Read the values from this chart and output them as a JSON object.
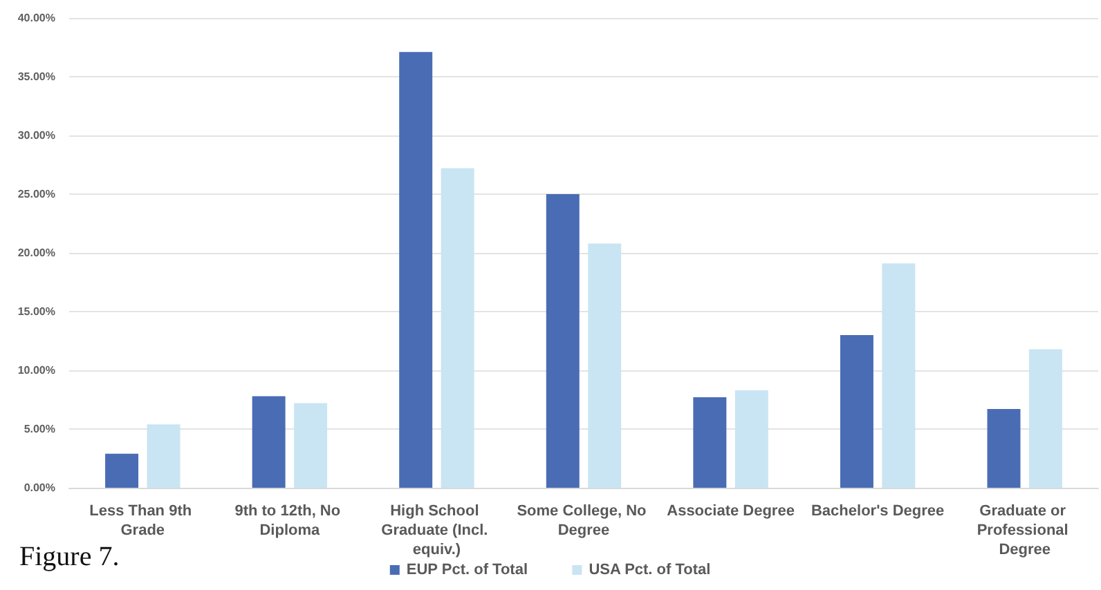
{
  "chart_data": {
    "type": "bar",
    "categories": [
      "Less Than 9th Grade",
      "9th to 12th, No Diploma",
      "High School Graduate (Incl. equiv.)",
      "Some College, No Degree",
      "Associate Degree",
      "Bachelor's Degree",
      "Graduate or Professional Degree"
    ],
    "series": [
      {
        "name": "EUP Pct. of Total",
        "color": "#4a6cb4",
        "values": [
          2.9,
          7.8,
          37.1,
          25.0,
          7.7,
          13.0,
          6.7
        ]
      },
      {
        "name": "USA Pct. of Total",
        "color": "#c9e5f3",
        "values": [
          5.4,
          7.2,
          27.2,
          20.8,
          8.3,
          19.1,
          11.8
        ]
      }
    ],
    "ylim": [
      0,
      40
    ],
    "yticks": [
      {
        "value": 0,
        "label": "0.00%"
      },
      {
        "value": 5,
        "label": "5.00%"
      },
      {
        "value": 10,
        "label": "10.00%"
      },
      {
        "value": 15,
        "label": "15.00%"
      },
      {
        "value": 20,
        "label": "20.00%"
      },
      {
        "value": 25,
        "label": "25.00%"
      },
      {
        "value": 30,
        "label": "30.00%"
      },
      {
        "value": 35,
        "label": "35.00%"
      },
      {
        "value": 40,
        "label": "40.00%"
      }
    ],
    "grid": "y",
    "legend": "bottom",
    "annotations": [
      "Figure 7."
    ]
  }
}
